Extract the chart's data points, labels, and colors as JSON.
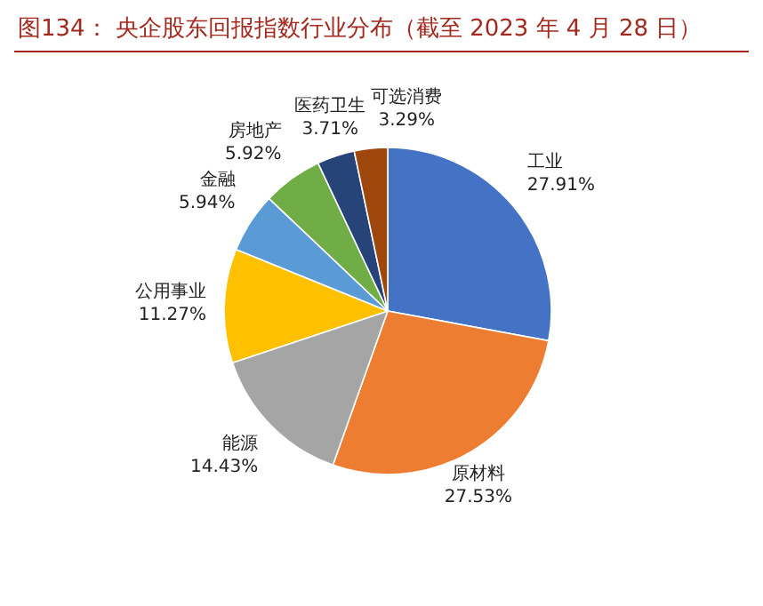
{
  "chart_data": {
    "type": "pie",
    "title": "图134：  央企股东回报指数行业分布（截至 2023 年 4 月 28 日）",
    "categories": [
      "工业",
      "原材料",
      "能源",
      "公用事业",
      "金融",
      "房地产",
      "医药卫生",
      "可选消费"
    ],
    "values": [
      27.91,
      27.53,
      14.43,
      11.27,
      5.94,
      5.92,
      3.71,
      3.29
    ],
    "value_labels": [
      "27.91%",
      "27.53%",
      "14.43%",
      "11.27%",
      "5.94%",
      "5.92%",
      "3.71%",
      "3.29%"
    ],
    "colors": [
      "#4472c4",
      "#ed7d31",
      "#a5a5a5",
      "#ffc000",
      "#5b9bd5",
      "#70ad47",
      "#264478",
      "#9e480e"
    ]
  }
}
